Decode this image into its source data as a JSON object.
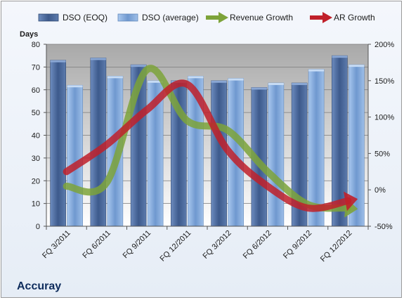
{
  "chart_data": {
    "type": "bar",
    "title": "",
    "ylabel": "Days",
    "ylim": [
      0,
      80
    ],
    "yticks": [
      0,
      10,
      20,
      30,
      40,
      50,
      60,
      70,
      80
    ],
    "y2lim": [
      -50,
      200
    ],
    "y2ticks": [
      "-50%",
      "0%",
      "50%",
      "100%",
      "150%",
      "200%"
    ],
    "y2values": [
      -50,
      0,
      50,
      100,
      150,
      200
    ],
    "categories": [
      "FQ 3/2011",
      "FQ 6/2011",
      "FQ 9/2011",
      "FQ 12/2011",
      "FQ 3/2012",
      "FQ 6/2012",
      "FQ 9/2012",
      "FQ 12/2012"
    ],
    "series": [
      {
        "name": "DSO (EOQ)",
        "type": "bar",
        "axis": "left",
        "color": "#4f6fa3",
        "values": [
          73,
          74,
          71,
          64,
          64,
          61,
          63,
          75
        ]
      },
      {
        "name": "DSO (average)",
        "type": "bar",
        "axis": "left",
        "color": "#8fb4e3",
        "values": [
          62,
          66,
          64,
          66,
          65,
          63,
          69,
          71
        ]
      },
      {
        "name": "Revenue Growth",
        "type": "line",
        "axis": "right",
        "color": "#7da33a",
        "values": [
          5,
          10,
          165,
          95,
          82,
          25,
          -20,
          -25
        ]
      },
      {
        "name": "AR Growth",
        "type": "line",
        "axis": "right",
        "color": "#c0202a",
        "values": [
          25,
          62,
          110,
          145,
          55,
          5,
          -25,
          -15
        ]
      }
    ],
    "grid": true,
    "legend": "top"
  },
  "footer": {
    "company": "Accuray"
  }
}
